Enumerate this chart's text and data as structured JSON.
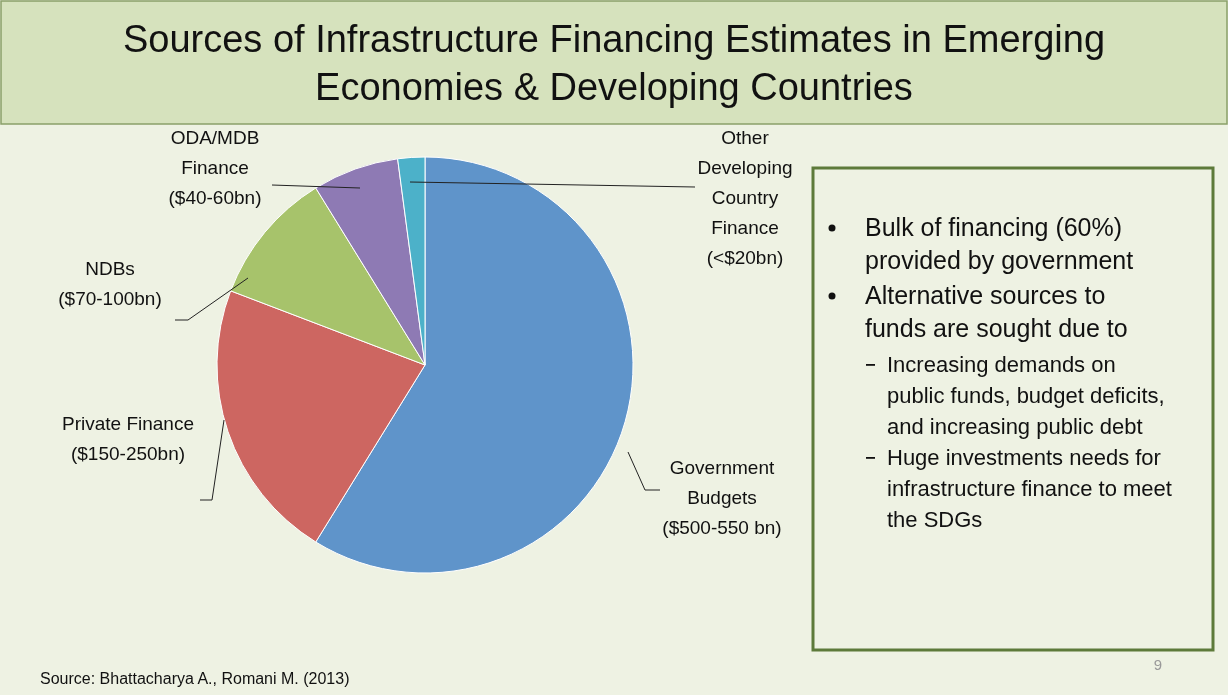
{
  "chart_data": {
    "type": "pie",
    "title": "Sources of Infrastructure Financing Estimates in Emerging Economies & Developing Countries",
    "categories": [
      "Government Budgets ($500-550 bn)",
      "Private Finance ($150-250bn)",
      "NDBs ($70-100bn)",
      "ODA/MDB Finance ($40-60bn)",
      "Other Developing Country Finance (<$20bn)"
    ],
    "values": [
      58.8,
      22,
      10.4,
      6.7,
      2.1
    ],
    "colors": [
      "#5f94ca",
      "#cd6661",
      "#a7c36b",
      "#8e7ab4",
      "#4cb1c9"
    ],
    "annotations": [
      "Bulk of financing (60%) provided by government",
      "Alternative sources to funds are sought due to",
      "Increasing demands on public funds, budget deficits, and increasing public debt",
      "Huge investments needs for infrastructure finance to meet the SDGs",
      "Source: Bhattacharya A., Romani M. (2013)",
      "9"
    ]
  }
}
